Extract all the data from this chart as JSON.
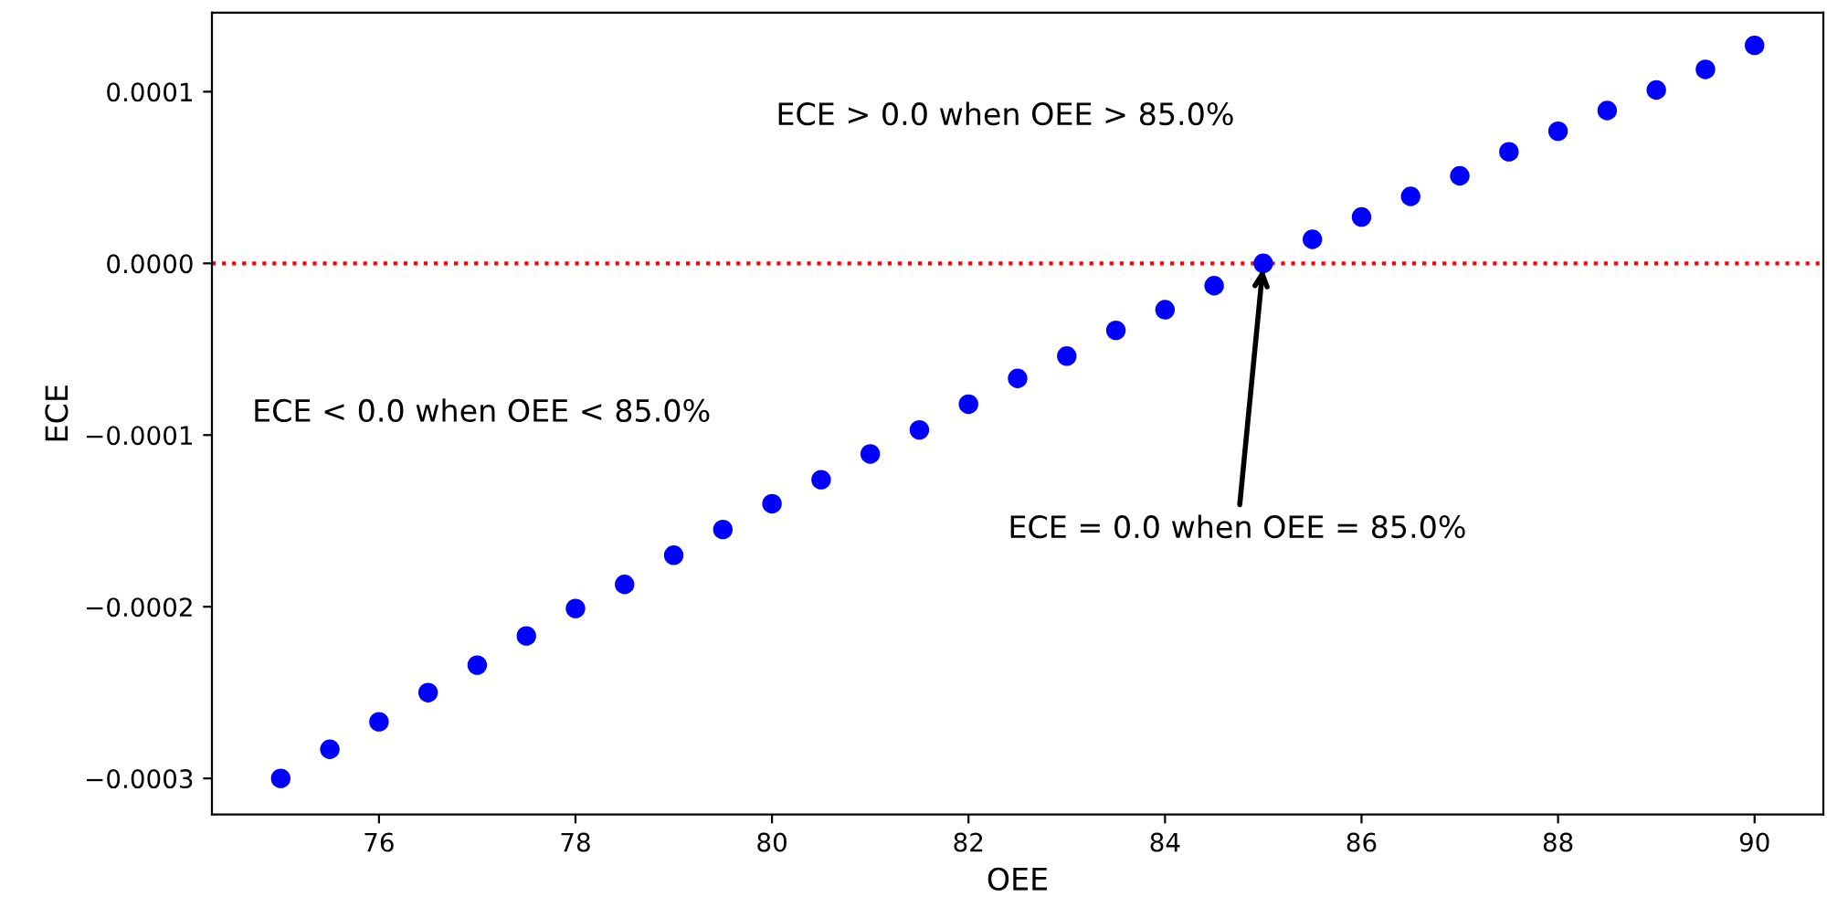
{
  "chart_data": {
    "type": "scatter",
    "xlabel": "OEE",
    "ylabel": "ECE",
    "x": [
      75,
      75.5,
      76,
      76.5,
      77,
      77.5,
      78,
      78.5,
      79,
      79.5,
      80,
      80.5,
      81,
      81.5,
      82,
      82.5,
      83,
      83.5,
      84,
      84.5,
      85,
      85.5,
      86,
      86.5,
      87,
      87.5,
      88,
      88.5,
      89,
      89.5,
      90
    ],
    "series": [
      {
        "color": "#0000ff",
        "values": [
          -0.0003,
          -0.000283,
          -0.000267,
          -0.00025,
          -0.000234,
          -0.000217,
          -0.000201,
          -0.000187,
          -0.00017,
          -0.000155,
          -0.00014,
          -0.000126,
          -0.000111,
          -9.7e-05,
          -8.2e-05,
          -6.7e-05,
          -5.4e-05,
          -3.9e-05,
          -2.7e-05,
          -1.3e-05,
          0,
          1.4e-05,
          2.7e-05,
          3.9e-05,
          5.1e-05,
          6.5e-05,
          7.7e-05,
          8.9e-05,
          0.000101,
          0.000113,
          0.000127
        ]
      }
    ],
    "marker": "circle",
    "xlim": [
      74.3,
      90.7
    ],
    "ylim": [
      -0.000321,
      0.000146
    ],
    "xticks": [
      76,
      78,
      80,
      82,
      84,
      86,
      88,
      90
    ],
    "yticks": [
      {
        "value": -0.0003,
        "label": "−0.0003"
      },
      {
        "value": -0.0002,
        "label": "−0.0002"
      },
      {
        "value": -0.0001,
        "label": "−0.0001"
      },
      {
        "value": 0,
        "label": "0.0000"
      },
      {
        "value": 0.0001,
        "label": "0.0001"
      }
    ],
    "ref_lines": [
      {
        "axis": "y",
        "value": 0,
        "color": "#ff0000",
        "line_style": "dotted"
      }
    ],
    "annotations": [
      "ECE > 0.0 when OEE > 85.0%",
      "ECE < 0.0 when OEE < 85.0%",
      {
        "text": "ECE = 0.0 when OEE = 85.0%",
        "x": 85,
        "y": 0
      }
    ],
    "grid": false,
    "legend": false
  }
}
